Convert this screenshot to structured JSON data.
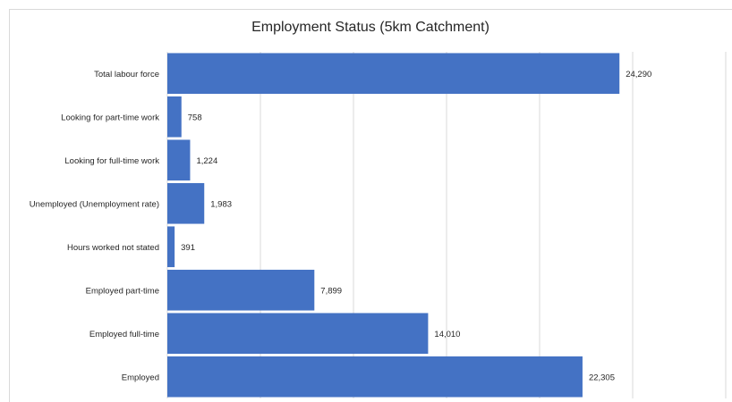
{
  "chart_data": {
    "type": "bar",
    "orientation": "horizontal",
    "title": "Employment Status (5km Catchment)",
    "xlabel": "",
    "ylabel": "",
    "categories": [
      "Total labour force",
      "Looking for part-time work",
      "Looking for full-time work",
      "Unemployed (Unemployment rate)",
      "Hours worked not stated",
      "Employed part-time",
      "Employed full-time",
      "Employed"
    ],
    "values": [
      24290,
      758,
      1224,
      1983,
      391,
      7899,
      14010,
      22305
    ],
    "value_labels": [
      "24,290",
      "758",
      "1,224",
      "1,983",
      "391",
      "7,899",
      "14,010",
      "22,305"
    ],
    "xlim": [
      0,
      30000
    ],
    "grid": true,
    "legend": "none",
    "bar_color": "#4472c4",
    "grid_color": "#d9d9d9"
  }
}
